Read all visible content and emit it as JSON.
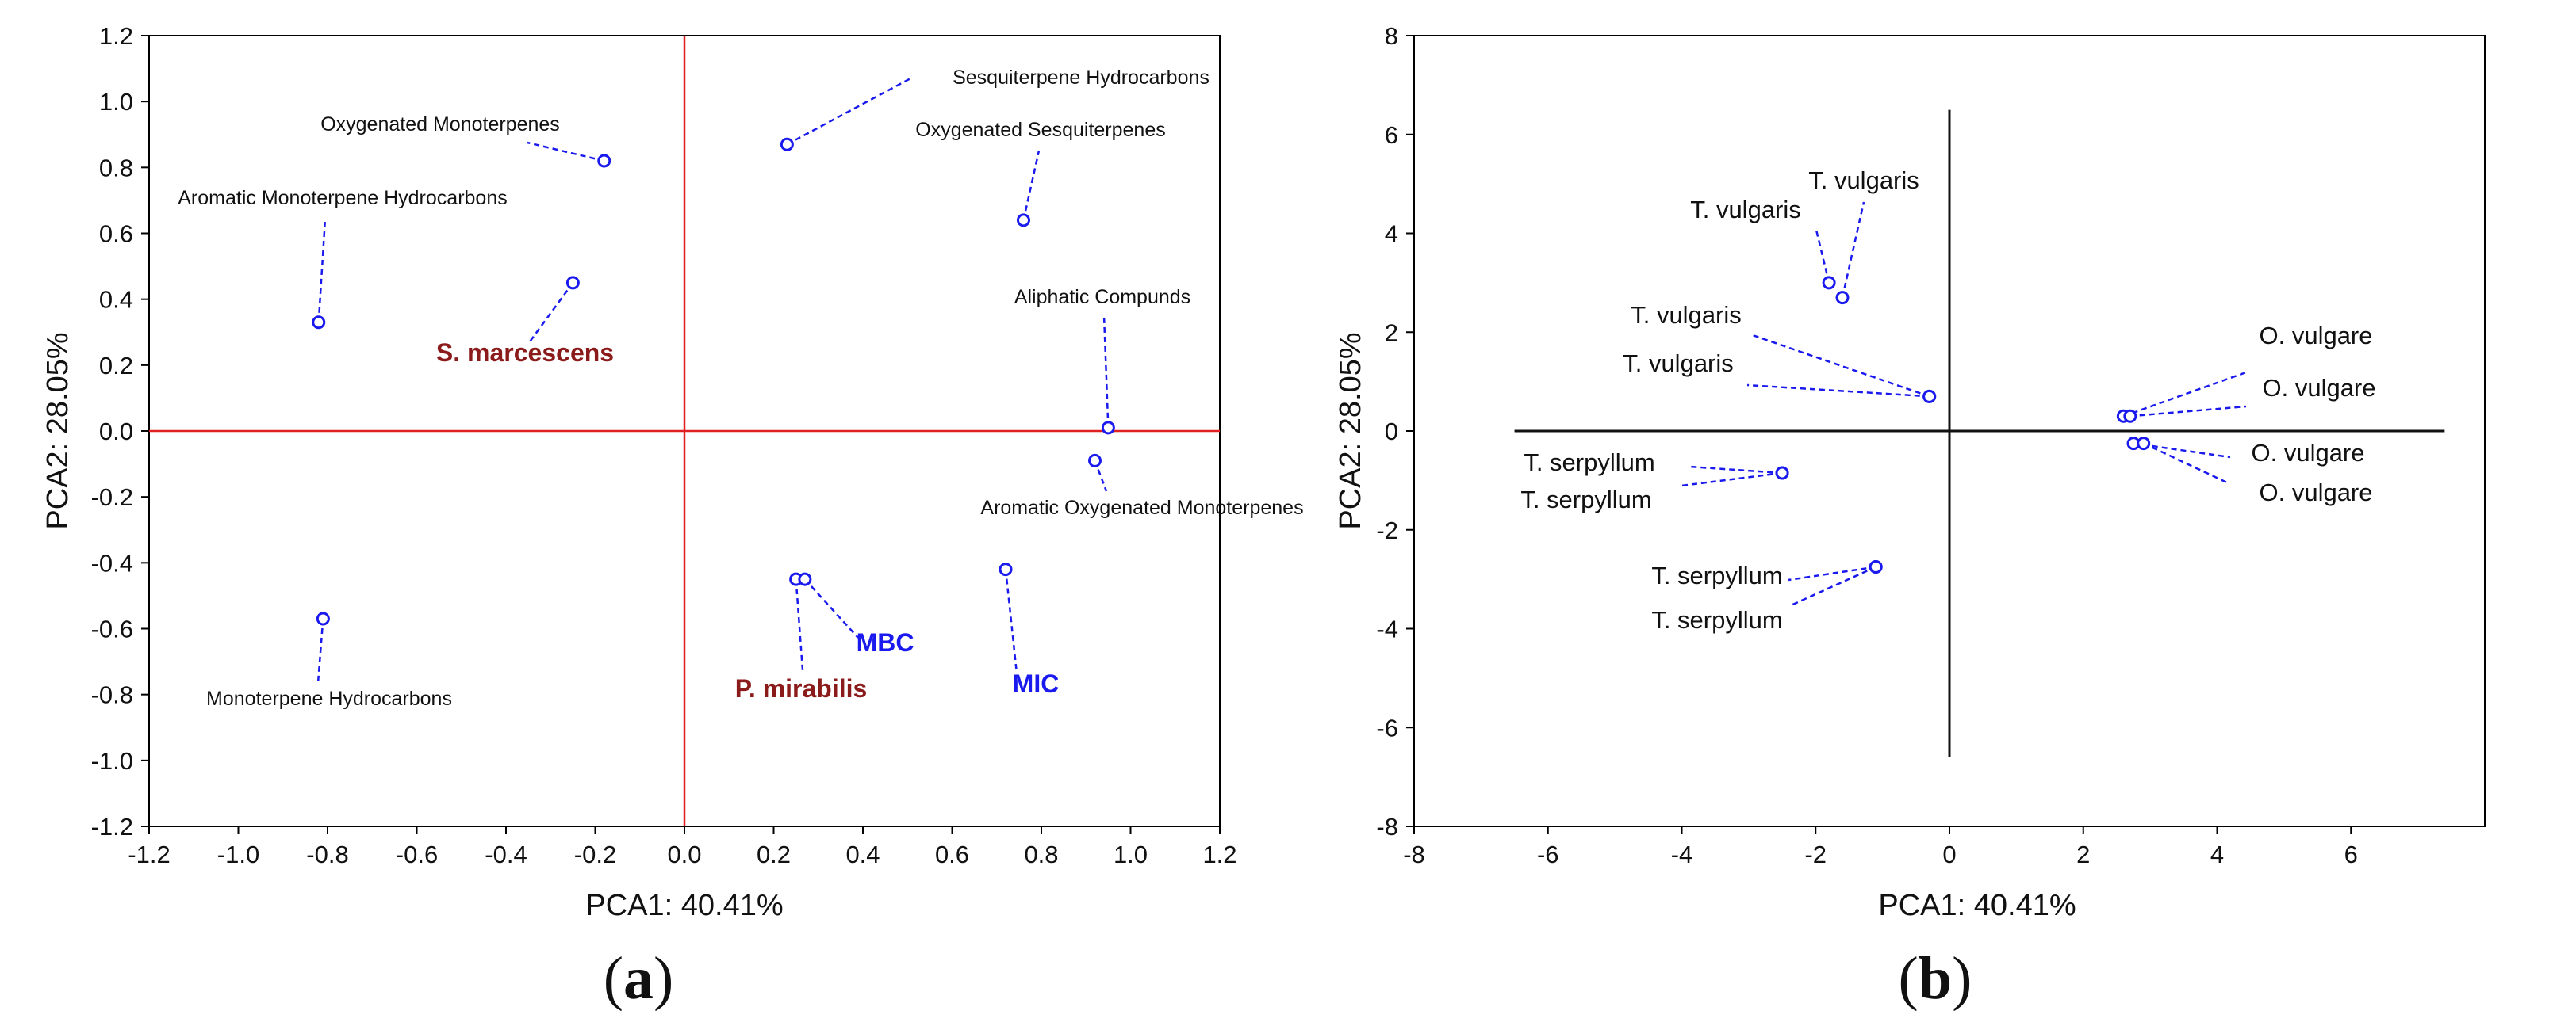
{
  "chart_data": [
    {
      "type": "scatter",
      "panel": "(a)",
      "caption_open": "(",
      "caption_letter": "a",
      "caption_close": ")",
      "xlabel": "PCA1: 40.41%",
      "ylabel": "PCA2: 28.05%",
      "xlim": [
        -1.2,
        1.2
      ],
      "ylim": [
        -1.2,
        1.2
      ],
      "xticks": [
        -1.2,
        -1.0,
        -0.8,
        -0.6,
        -0.4,
        -0.2,
        0.0,
        0.2,
        0.4,
        0.6,
        0.8,
        1.0,
        1.2
      ],
      "yticks": [
        -1.2,
        -1.0,
        -0.8,
        -0.6,
        -0.4,
        -0.2,
        0.0,
        0.2,
        0.4,
        0.6,
        0.8,
        1.0,
        1.2
      ],
      "xtick_labels": [
        "-1.2",
        "-1.0",
        "-0.8",
        "-0.6",
        "-0.4",
        "-0.2",
        "0.0",
        "0.2",
        "0.4",
        "0.6",
        "0.8",
        "1.0",
        "1.2"
      ],
      "ytick_labels": [
        "-1.2",
        "-1.0",
        "-0.8",
        "-0.6",
        "-0.4",
        "-0.2",
        "0.0",
        "0.2",
        "0.4",
        "0.6",
        "0.8",
        "1.0",
        "1.2"
      ],
      "origin_line_color": "#e02020",
      "point_color": "#1a1aee",
      "points": [
        {
          "name": "Oxygenated Monoterpenes",
          "x": -0.18,
          "y": 0.82
        },
        {
          "name": "Aromatic Monoterpene Hydrocarbons",
          "x": -0.82,
          "y": 0.33
        },
        {
          "name": "S. marcescens",
          "x": -0.25,
          "y": 0.45
        },
        {
          "name": "Monoterpene Hydrocarbons",
          "x": -0.81,
          "y": -0.57
        },
        {
          "name": "Sesquiterpene Hydrocarbons",
          "x": 0.23,
          "y": 0.87
        },
        {
          "name": "Oxygenated Sesquiterpenes",
          "x": 0.76,
          "y": 0.64
        },
        {
          "name": "Aliphatic Compunds",
          "x": 0.95,
          "y": 0.01
        },
        {
          "name": "Aromatic Oxygenated Monoterpenes",
          "x": 0.92,
          "y": -0.09
        },
        {
          "name": "P. mirabilis",
          "x": 0.25,
          "y": -0.45
        },
        {
          "name": "MBC",
          "x": 0.27,
          "y": -0.45
        },
        {
          "name": "MIC",
          "x": 0.72,
          "y": -0.42
        }
      ],
      "labels": [
        {
          "text": "Oxygenated Monoterpenes",
          "color": "#111111",
          "style": "normal"
        },
        {
          "text": "Aromatic Monoterpene Hydrocarbons",
          "color": "#111111",
          "style": "normal"
        },
        {
          "text": "S. marcescens",
          "color": "#8b1a1a",
          "style": "bold"
        },
        {
          "text": "Monoterpene Hydrocarbons",
          "color": "#111111",
          "style": "normal"
        },
        {
          "text": "Sesquiterpene Hydrocarbons",
          "color": "#111111",
          "style": "normal"
        },
        {
          "text": "Oxygenated Sesquiterpenes",
          "color": "#111111",
          "style": "normal"
        },
        {
          "text": "Aliphatic Compunds",
          "color": "#111111",
          "style": "normal"
        },
        {
          "text": "Aromatic Oxygenated Monoterpenes",
          "color": "#111111",
          "style": "normal"
        },
        {
          "text": "P. mirabilis",
          "color": "#8b1a1a",
          "style": "bold"
        },
        {
          "text": "MBC",
          "color": "#1a1aee",
          "style": "bold"
        },
        {
          "text": "MIC",
          "color": "#1a1aee",
          "style": "bold"
        }
      ]
    },
    {
      "type": "scatter",
      "panel": "(b)",
      "caption_open": "(",
      "caption_letter": "b",
      "caption_close": ")",
      "xlabel": "PCA1: 40.41%",
      "ylabel": "PCA2: 28.05%",
      "xlim": [
        -8,
        8
      ],
      "ylim": [
        -8,
        8
      ],
      "xticks": [
        -8,
        -6,
        -4,
        -2,
        0,
        2,
        4,
        6
      ],
      "yticks": [
        -8,
        -6,
        -4,
        -2,
        0,
        2,
        4,
        6,
        8
      ],
      "xtick_labels": [
        "-8",
        "-6",
        "-4",
        "-2",
        "0",
        "2",
        "4",
        "6"
      ],
      "ytick_labels": [
        "-8",
        "-6",
        "-4",
        "-2",
        "0",
        "2",
        "4",
        "6",
        "8"
      ],
      "origin_line_color": "#111111",
      "point_color": "#1a1aee",
      "points": [
        {
          "name": "T. vulgaris",
          "x": -1.6,
          "y": 2.7
        },
        {
          "name": "T. vulgaris",
          "x": -1.8,
          "y": 3.0
        },
        {
          "name": "T. vulgaris",
          "x": -0.3,
          "y": 0.7
        },
        {
          "name": "T. vulgaris",
          "x": -0.3,
          "y": 0.7
        },
        {
          "name": "T. serpyllum",
          "x": -2.5,
          "y": -0.85
        },
        {
          "name": "T. serpyllum",
          "x": -2.5,
          "y": -0.85
        },
        {
          "name": "T. serpyllum",
          "x": -1.1,
          "y": -2.75
        },
        {
          "name": "T. serpyllum",
          "x": -1.1,
          "y": -2.75
        },
        {
          "name": "O. vulgare",
          "x": 2.6,
          "y": 0.3
        },
        {
          "name": "O. vulgare",
          "x": 2.7,
          "y": 0.3
        },
        {
          "name": "O. vulgare",
          "x": 2.75,
          "y": -0.25
        },
        {
          "name": "O. vulgare",
          "x": 2.9,
          "y": -0.25
        }
      ],
      "labels": [
        {
          "text": "T. vulgaris"
        },
        {
          "text": "T. vulgaris"
        },
        {
          "text": "T. vulgaris"
        },
        {
          "text": "T. vulgaris"
        },
        {
          "text": "T. serpyllum"
        },
        {
          "text": "T. serpyllum"
        },
        {
          "text": "T. serpyllum"
        },
        {
          "text": "T. serpyllum"
        },
        {
          "text": "O. vulgare"
        },
        {
          "text": "O. vulgare"
        },
        {
          "text": "O. vulgare"
        },
        {
          "text": "O. vulgare"
        }
      ]
    }
  ]
}
